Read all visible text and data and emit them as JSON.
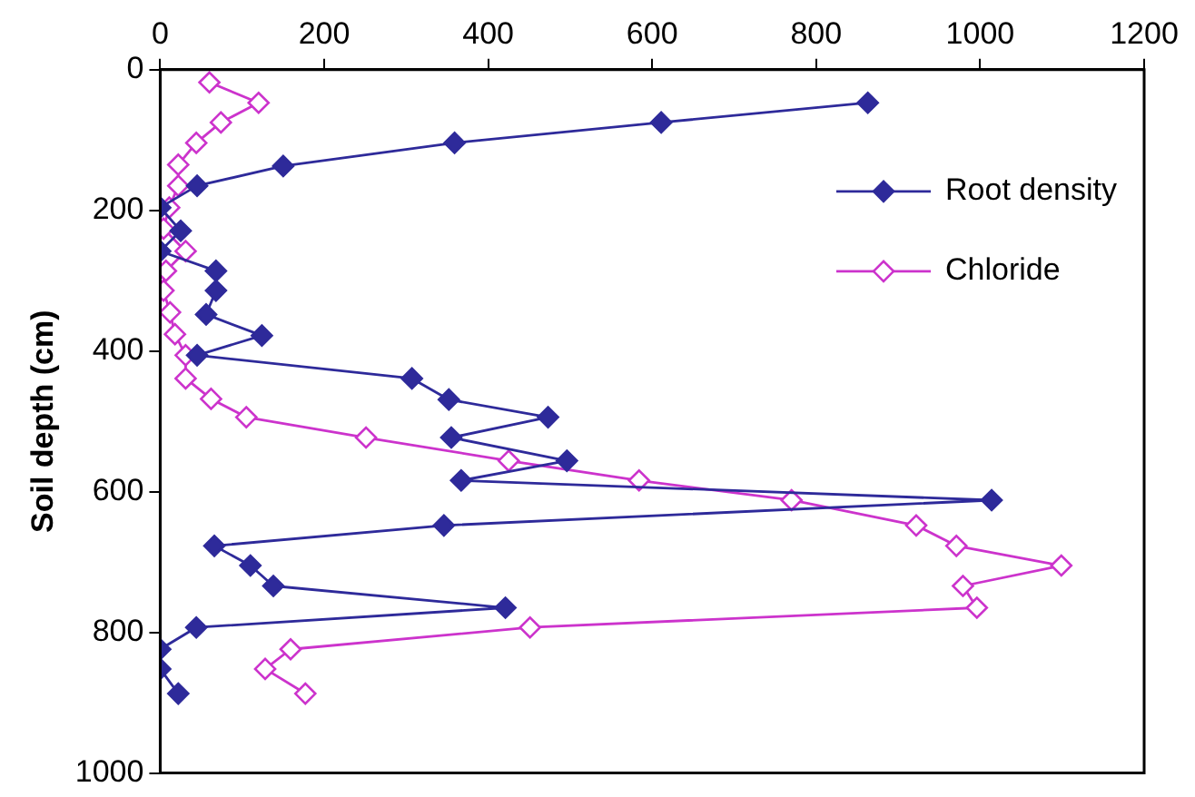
{
  "chart_data": {
    "type": "line",
    "ylabel": "Soil depth (cm)",
    "xlim": [
      0,
      1200
    ],
    "xticks": [
      0,
      200,
      400,
      600,
      800,
      1000,
      1200
    ],
    "ylim": [
      1000,
      0
    ],
    "yticks": [
      0,
      200,
      400,
      600,
      800,
      1000
    ],
    "grid": false,
    "legend": "top right",
    "line_style": "solid",
    "series": [
      {
        "name": "Root density",
        "color": "#2e2a9a",
        "marker": "diamond",
        "x": [
          863,
          611,
          359,
          150,
          45,
          0,
          25,
          0,
          68,
          68,
          56,
          124,
          45,
          307,
          352,
          473,
          355,
          496,
          367,
          1014,
          346,
          66,
          110,
          138,
          421,
          44,
          0,
          0,
          22
        ],
        "values": [
          47,
          75,
          104,
          137,
          165,
          196,
          229,
          258,
          286,
          314,
          348,
          378,
          406,
          439,
          469,
          494,
          523,
          556,
          584,
          612,
          648,
          677,
          705,
          734,
          765,
          793,
          824,
          852,
          887
        ]
      },
      {
        "name": "Chloride",
        "color": "#cc33cc",
        "marker": "diamond",
        "x": [
          60,
          120,
          74,
          44,
          22,
          22,
          11,
          4,
          31,
          7,
          4,
          12,
          18,
          31,
          31,
          62,
          105,
          251,
          425,
          584,
          770,
          922,
          971,
          1099,
          979,
          996,
          451,
          159,
          128,
          177
        ],
        "values": [
          18,
          47,
          75,
          104,
          135,
          165,
          196,
          226,
          258,
          286,
          314,
          345,
          376,
          406,
          439,
          468,
          494,
          523,
          556,
          584,
          612,
          648,
          677,
          705,
          734,
          765,
          793,
          824,
          852,
          887
        ]
      }
    ]
  }
}
